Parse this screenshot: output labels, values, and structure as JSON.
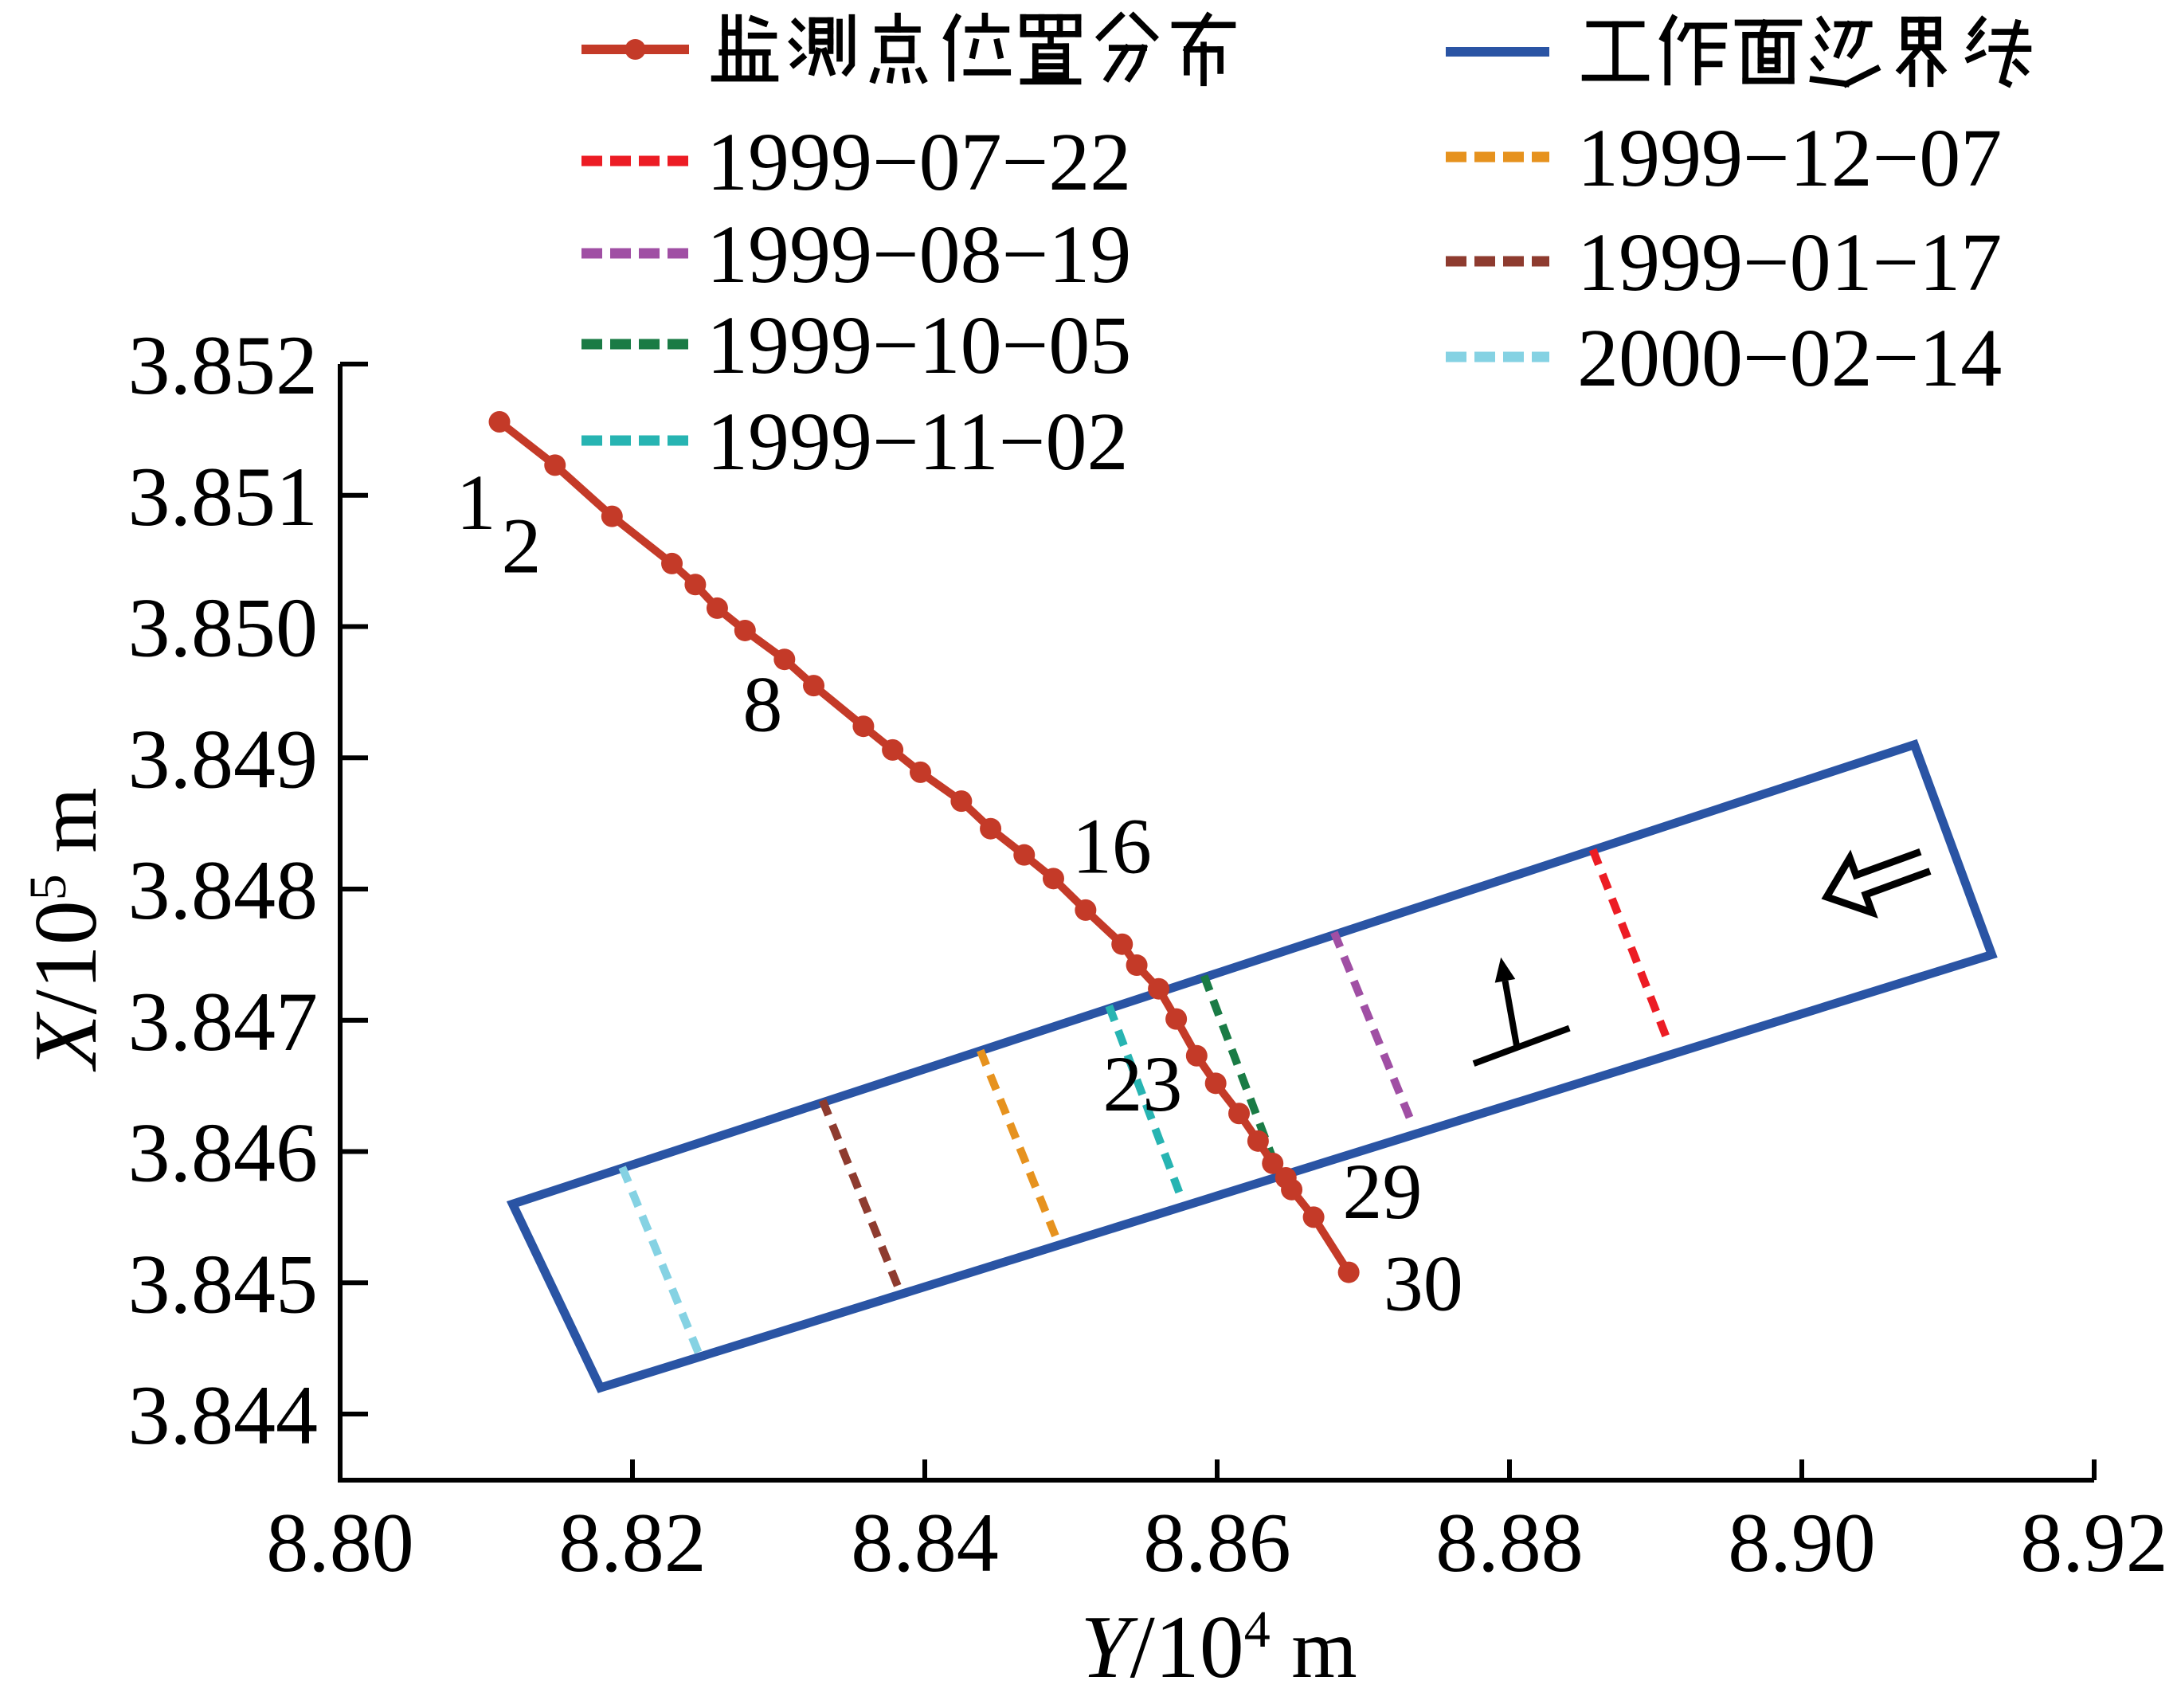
{
  "chart_data": {
    "type": "line",
    "xlabel": "Y/10⁴ m",
    "ylabel": "X/10⁵ m",
    "xlim": [
      8.8,
      8.92
    ],
    "ylim": [
      3.8435,
      3.852
    ],
    "grid": false,
    "x_ticks": [
      "8.80",
      "8.82",
      "8.84",
      "8.86",
      "8.88",
      "8.90",
      "8.92"
    ],
    "y_ticks": [
      "3.844",
      "3.845",
      "3.846",
      "3.847",
      "3.848",
      "3.849",
      "3.850",
      "3.851",
      "3.852"
    ],
    "series": [
      {
        "name": "监测点位置分布",
        "type": "line-markers",
        "color": "#c43a28",
        "points": [
          [
            8.8109,
            3.85156
          ],
          [
            8.8147,
            3.85123
          ],
          [
            8.8186,
            3.85084
          ],
          [
            8.8227,
            3.85048
          ],
          [
            8.8243,
            3.85032
          ],
          [
            8.8258,
            3.85014
          ],
          [
            8.8277,
            3.84997
          ],
          [
            8.8304,
            3.84975
          ],
          [
            8.8324,
            3.84955
          ],
          [
            8.8358,
            3.84924
          ],
          [
            8.8378,
            3.84906
          ],
          [
            8.8397,
            3.84889
          ],
          [
            8.8425,
            3.84867
          ],
          [
            8.8445,
            3.84846
          ],
          [
            8.8468,
            3.84826
          ],
          [
            8.8488,
            3.84808
          ],
          [
            8.851,
            3.84784
          ],
          [
            8.8535,
            3.84758
          ],
          [
            8.8545,
            3.84742
          ],
          [
            8.856,
            3.84724
          ],
          [
            8.8572,
            3.84701
          ],
          [
            8.8586,
            3.84673
          ],
          [
            8.8599,
            3.84652
          ],
          [
            8.8615,
            3.84629
          ],
          [
            8.8628,
            3.84608
          ],
          [
            8.8638,
            3.84591
          ],
          [
            8.8647,
            3.8458
          ],
          [
            8.8651,
            3.84571
          ],
          [
            8.8666,
            3.8455
          ],
          [
            8.869,
            3.84508
          ]
        ]
      },
      {
        "name": "工作面边界线",
        "type": "polygon",
        "color": "#2a54a4",
        "corners": [
          [
            8.8118,
            3.8456
          ],
          [
            8.9077,
            3.8491
          ],
          [
            8.913,
            3.8475
          ],
          [
            8.8178,
            3.8442
          ]
        ]
      }
    ],
    "face_position_lines": [
      {
        "date": "1999-07-22",
        "color": "#ec1c24",
        "from": [
          8.8857,
          3.8483
        ],
        "to": [
          8.8907,
          3.84688
        ]
      },
      {
        "date": "1999-08-19",
        "color": "#a04fa4",
        "from": [
          8.868,
          3.84767
        ],
        "to": [
          8.8732,
          3.84625
        ]
      },
      {
        "date": "1999-10-05",
        "color": "#1a7b45",
        "from": [
          8.8591,
          3.84734
        ],
        "to": [
          8.8639,
          3.84592
        ]
      },
      {
        "date": "1999-11-02",
        "color": "#27b4b2",
        "from": [
          8.8526,
          3.84711
        ],
        "to": [
          8.8574,
          3.84569
        ]
      },
      {
        "date": "1999-12-07",
        "color": "#e6921e",
        "from": [
          8.8438,
          3.84677
        ],
        "to": [
          8.849,
          3.84534
        ]
      },
      {
        "date": "1999-01-17",
        "color": "#8e3b2f",
        "from": [
          8.833,
          3.84639
        ],
        "to": [
          8.8382,
          3.84496
        ]
      },
      {
        "date": "2000-02-14",
        "color": "#85d2e3",
        "from": [
          8.8193,
          3.84588
        ],
        "to": [
          8.8245,
          3.84447
        ]
      }
    ],
    "point_labels": [
      {
        "text": "1",
        "x": 8.8093,
        "y": 3.85095
      },
      {
        "text": "2",
        "x": 8.8124,
        "y": 3.85062
      },
      {
        "text": "8",
        "x": 8.8289,
        "y": 3.84941
      },
      {
        "text": "16",
        "x": 8.8528,
        "y": 3.84833
      },
      {
        "text": "23",
        "x": 8.8549,
        "y": 3.84652
      },
      {
        "text": "29",
        "x": 8.8713,
        "y": 3.8457
      },
      {
        "text": "30",
        "x": 8.8741,
        "y": 3.845
      }
    ],
    "legend": {
      "left_column": [
        {
          "label": "监测点位置分布",
          "color": "#c43a28",
          "style": "solid-dot"
        },
        {
          "label": "1999-07-22",
          "color": "#ec1c24",
          "style": "dashed"
        },
        {
          "label": "1999-08-19",
          "color": "#a04fa4",
          "style": "dashed"
        },
        {
          "label": "1999-10-05",
          "color": "#1a7b45",
          "style": "dashed"
        },
        {
          "label": "1999-11-02",
          "color": "#27b4b2",
          "style": "dashed"
        }
      ],
      "right_column": [
        {
          "label": "工作面边界线",
          "color": "#2a54a4",
          "style": "solid"
        },
        {
          "label": "1999-12-07",
          "color": "#e6921e",
          "style": "dashed"
        },
        {
          "label": "1999-01-17",
          "color": "#8e3b2f",
          "style": "dashed"
        },
        {
          "label": "2000-02-14",
          "color": "#85d2e3",
          "style": "dashed"
        }
      ]
    },
    "annotations": {
      "mining_direction_arrow": {
        "tip": [
          8.9017,
          3.84794
        ],
        "rotation_deg": -20
      },
      "dip_symbol": {
        "base_from": [
          8.87755,
          3.84667
        ],
        "base_to": [
          8.8841,
          3.84694
        ],
        "arrow_from": [
          8.8805,
          3.8468
        ],
        "arrow_to": [
          8.8797,
          3.8473
        ]
      }
    }
  }
}
